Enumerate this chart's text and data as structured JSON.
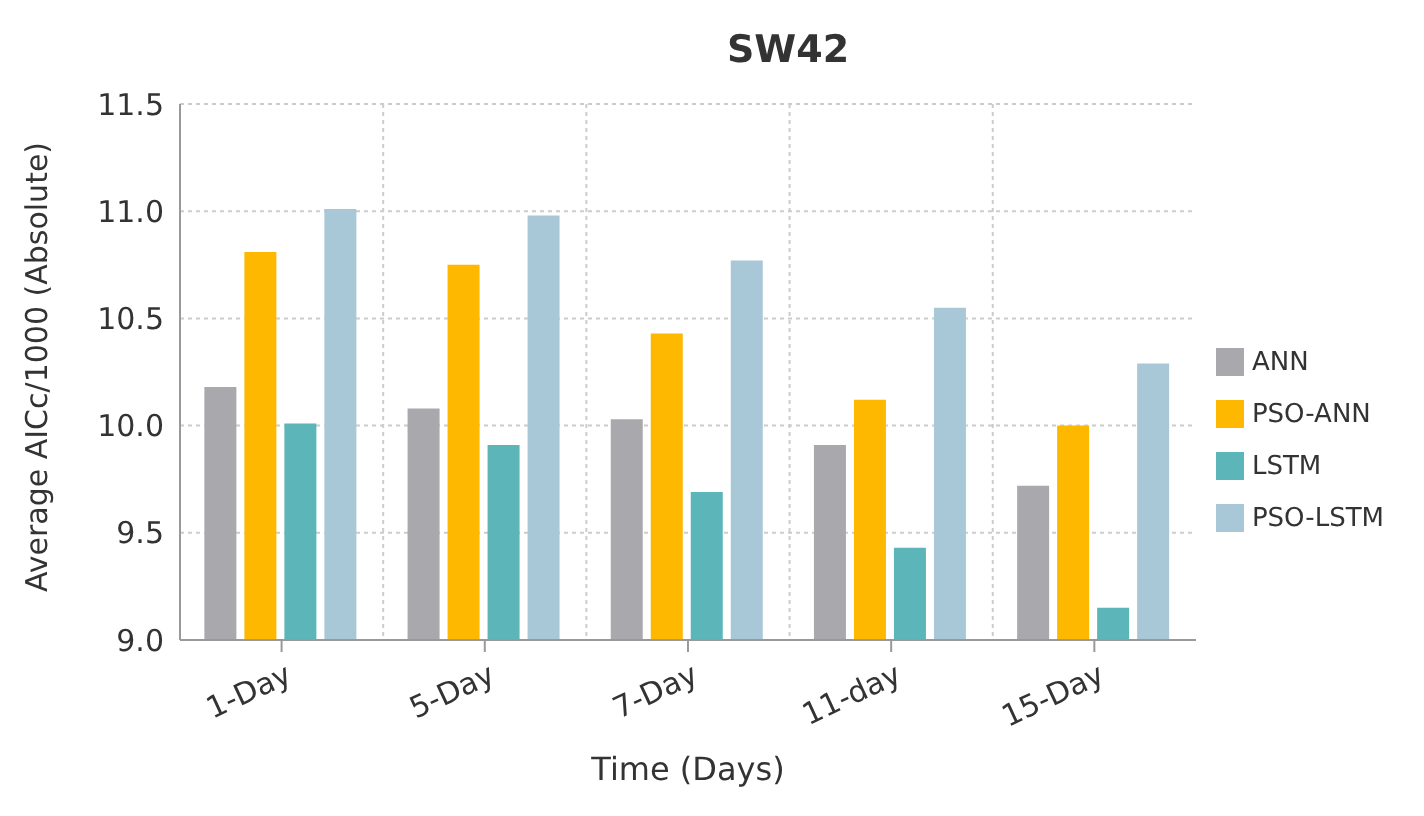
{
  "chart_data": {
    "type": "bar",
    "title": "SW42",
    "xlabel": "Time (Days)",
    "ylabel": "Average AICc/1000 (Absolute)",
    "categories": [
      "1-Day",
      "5-Day",
      "7-Day",
      "11-day",
      "15-Day"
    ],
    "series": [
      {
        "name": "ANN",
        "color": "#a9a9ad",
        "values": [
          10.18,
          10.08,
          10.03,
          9.91,
          9.72
        ]
      },
      {
        "name": "PSO-ANN",
        "color": "#ffb800",
        "values": [
          10.81,
          10.75,
          10.43,
          10.12,
          10.0
        ]
      },
      {
        "name": "LSTM",
        "color": "#5bb5b9",
        "values": [
          10.01,
          9.91,
          9.69,
          9.43,
          9.15
        ]
      },
      {
        "name": "PSO-LSTM",
        "color": "#a8c8d8",
        "values": [
          11.01,
          10.98,
          10.77,
          10.55,
          10.29
        ]
      }
    ],
    "ylim": [
      9.0,
      11.5
    ],
    "yticks": [
      {
        "value": 9.0,
        "label": "9.0"
      },
      {
        "value": 9.5,
        "label": "9.5"
      },
      {
        "value": 10.0,
        "label": "10.0"
      },
      {
        "value": 10.5,
        "label": "10.5"
      },
      {
        "value": 11.0,
        "label": "11.0"
      },
      {
        "value": 11.5,
        "label": "11.5"
      }
    ],
    "grid": true,
    "legend": "right"
  }
}
